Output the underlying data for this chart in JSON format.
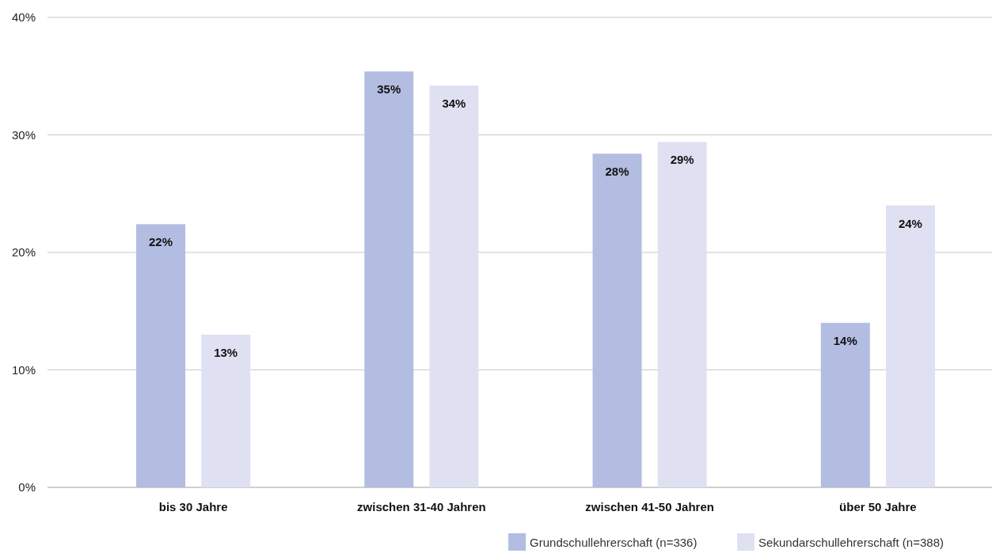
{
  "chart_data": {
    "type": "bar",
    "categories": [
      "bis 30 Jahre",
      "zwischen 31-40 Jahren",
      "zwischen 41-50 Jahren",
      "über 50 Jahre"
    ],
    "series": [
      {
        "name": "Grundschullehrerschaft (n=336)",
        "color": "#b3bce1",
        "values": [
          22.4,
          35.4,
          28.4,
          14.0
        ],
        "value_labels": [
          "22%",
          "35%",
          "28%",
          "14%"
        ]
      },
      {
        "name": "Sekundarschullehrerschaft (n=388)",
        "color": "#dfe1f2",
        "values": [
          13.0,
          34.2,
          29.4,
          24.0
        ],
        "value_labels": [
          "13%",
          "34%",
          "29%",
          "24%"
        ]
      }
    ],
    "ylim": [
      0,
      40
    ],
    "yticks": [
      {
        "value": 0,
        "label": "0%"
      },
      {
        "value": 10,
        "label": "10%"
      },
      {
        "value": 20,
        "label": "20%"
      },
      {
        "value": 30,
        "label": "30%"
      },
      {
        "value": 40,
        "label": "40%"
      }
    ],
    "grid": "y",
    "legend": "bottom right"
  }
}
